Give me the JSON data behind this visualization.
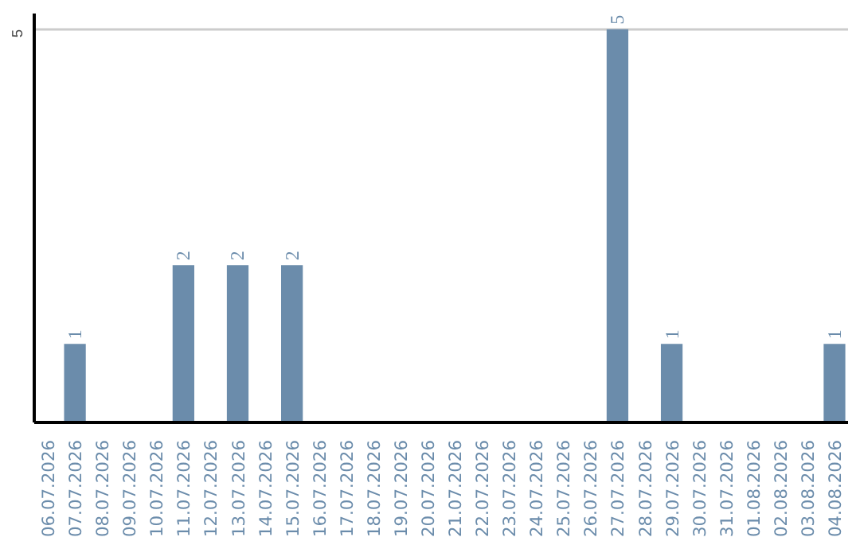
{
  "chart_data": {
    "type": "bar",
    "categories": [
      "06.07.2026",
      "07.07.2026",
      "08.07.2026",
      "09.07.2026",
      "10.07.2026",
      "11.07.2026",
      "12.07.2026",
      "13.07.2026",
      "14.07.2026",
      "15.07.2026",
      "16.07.2026",
      "17.07.2026",
      "18.07.2026",
      "19.07.2026",
      "20.07.2026",
      "21.07.2026",
      "22.07.2026",
      "23.07.2026",
      "24.07.2026",
      "25.07.2026",
      "26.07.2026",
      "27.07.2026",
      "28.07.2026",
      "29.07.2026",
      "30.07.2026",
      "31.07.2026",
      "01.08.2026",
      "02.08.2026",
      "03.08.2026",
      "04.08.2026"
    ],
    "values": [
      0,
      1,
      0,
      0,
      0,
      2,
      0,
      2,
      0,
      2,
      0,
      0,
      0,
      0,
      0,
      0,
      0,
      0,
      0,
      0,
      0,
      5,
      0,
      1,
      0,
      0,
      0,
      0,
      0,
      1
    ],
    "value_labels": [
      null,
      "1",
      null,
      null,
      null,
      "2",
      null,
      "2",
      null,
      "2",
      null,
      null,
      null,
      null,
      null,
      null,
      null,
      null,
      null,
      null,
      null,
      "5",
      null,
      "1",
      null,
      null,
      null,
      null,
      null,
      "1"
    ],
    "color": "#6b8cab",
    "ylim": [
      0,
      5.2
    ],
    "yticks": [
      5
    ],
    "grid": "y"
  }
}
